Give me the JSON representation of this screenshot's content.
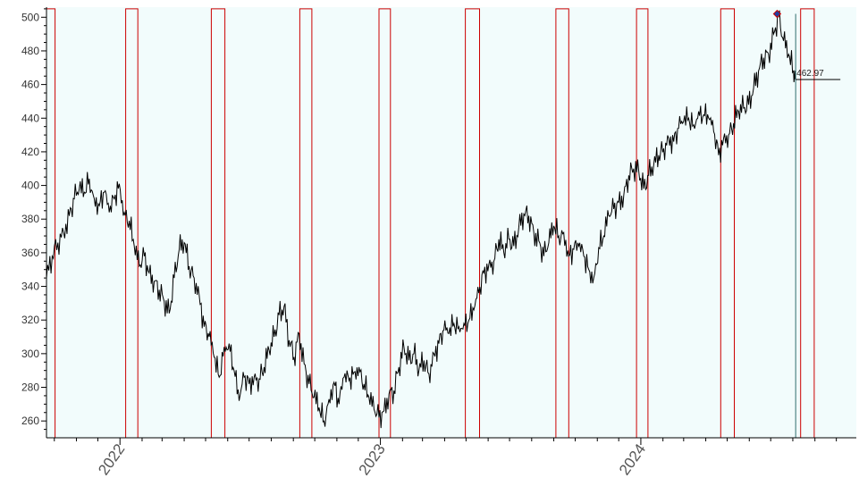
{
  "chart_data": {
    "type": "line",
    "title": "",
    "xlabel": "",
    "ylabel": "",
    "x_range": [
      "2021-09-20",
      "2024-10-29"
    ],
    "ylim": [
      250,
      506
    ],
    "y_ticks": [
      260,
      280,
      300,
      320,
      340,
      360,
      380,
      400,
      420,
      440,
      460,
      480,
      500
    ],
    "x_ticks": [
      {
        "date": "2022-01-01",
        "label": "2022"
      },
      {
        "date": "2023-01-01",
        "label": "2023"
      },
      {
        "date": "2024-01-01",
        "label": "2024"
      }
    ],
    "grid": false,
    "last_value_label": "462.97",
    "last_point": {
      "date": "2024-08-05",
      "value": 462.97
    },
    "marker_point": {
      "date": "2024-07-10",
      "value": 502
    },
    "colors": {
      "background": "#f2fcfc",
      "price_line": "#000000",
      "window_band": "#cc0000",
      "cursor_line": "#2f6f6f",
      "marker": "#1f3f9f"
    },
    "windows": [
      {
        "start": "2021-09-20",
        "end": "2021-10-02"
      },
      {
        "start": "2022-01-09",
        "end": "2022-01-26"
      },
      {
        "start": "2022-05-09",
        "end": "2022-05-28"
      },
      {
        "start": "2022-09-10",
        "end": "2022-09-27"
      },
      {
        "start": "2022-12-30",
        "end": "2023-01-15"
      },
      {
        "start": "2023-04-30",
        "end": "2023-05-20"
      },
      {
        "start": "2023-09-04",
        "end": "2023-09-22"
      },
      {
        "start": "2023-12-26",
        "end": "2024-01-11"
      },
      {
        "start": "2024-04-22",
        "end": "2024-05-11"
      },
      {
        "start": "2024-08-12",
        "end": "2024-08-31"
      }
    ],
    "series": [
      {
        "points": [
          [
            "2021-09-20",
            345
          ],
          [
            "2021-09-28",
            358
          ],
          [
            "2021-10-06",
            366
          ],
          [
            "2021-10-14",
            372
          ],
          [
            "2021-10-22",
            382
          ],
          [
            "2021-10-29",
            392
          ],
          [
            "2021-11-05",
            398
          ],
          [
            "2021-11-12",
            396
          ],
          [
            "2021-11-19",
            404
          ],
          [
            "2021-11-26",
            392
          ],
          [
            "2021-12-03",
            388
          ],
          [
            "2021-12-10",
            396
          ],
          [
            "2021-12-17",
            384
          ],
          [
            "2021-12-24",
            392
          ],
          [
            "2021-12-31",
            401
          ],
          [
            "2022-01-07",
            384
          ],
          [
            "2022-01-14",
            379
          ],
          [
            "2022-01-21",
            364
          ],
          [
            "2022-01-28",
            352
          ],
          [
            "2022-02-04",
            358
          ],
          [
            "2022-02-11",
            348
          ],
          [
            "2022-02-18",
            343
          ],
          [
            "2022-02-25",
            338
          ],
          [
            "2022-03-04",
            331
          ],
          [
            "2022-03-11",
            324
          ],
          [
            "2022-03-18",
            345
          ],
          [
            "2022-03-25",
            362
          ],
          [
            "2022-04-01",
            366
          ],
          [
            "2022-04-08",
            352
          ],
          [
            "2022-04-15",
            345
          ],
          [
            "2022-04-22",
            335
          ],
          [
            "2022-04-29",
            316
          ],
          [
            "2022-05-06",
            310
          ],
          [
            "2022-05-13",
            298
          ],
          [
            "2022-05-20",
            286
          ],
          [
            "2022-05-27",
            304
          ],
          [
            "2022-06-03",
            306
          ],
          [
            "2022-06-10",
            290
          ],
          [
            "2022-06-17",
            272
          ],
          [
            "2022-06-24",
            286
          ],
          [
            "2022-07-01",
            282
          ],
          [
            "2022-07-08",
            286
          ],
          [
            "2022-07-15",
            285
          ],
          [
            "2022-07-22",
            292
          ],
          [
            "2022-07-29",
            302
          ],
          [
            "2022-08-05",
            310
          ],
          [
            "2022-08-12",
            323
          ],
          [
            "2022-08-19",
            328
          ],
          [
            "2022-08-26",
            308
          ],
          [
            "2022-09-02",
            298
          ],
          [
            "2022-09-09",
            312
          ],
          [
            "2022-09-16",
            294
          ],
          [
            "2022-09-23",
            282
          ],
          [
            "2022-09-30",
            274
          ],
          [
            "2022-10-07",
            268
          ],
          [
            "2022-10-14",
            260
          ],
          [
            "2022-10-21",
            273
          ],
          [
            "2022-10-28",
            283
          ],
          [
            "2022-11-04",
            270
          ],
          [
            "2022-11-11",
            286
          ],
          [
            "2022-11-18",
            284
          ],
          [
            "2022-11-25",
            289
          ],
          [
            "2022-12-02",
            292
          ],
          [
            "2022-12-09",
            282
          ],
          [
            "2022-12-16",
            274
          ],
          [
            "2022-12-23",
            267
          ],
          [
            "2022-12-30",
            262
          ],
          [
            "2023-01-06",
            266
          ],
          [
            "2023-01-13",
            276
          ],
          [
            "2023-01-20",
            278
          ],
          [
            "2023-01-27",
            292
          ],
          [
            "2023-02-03",
            304
          ],
          [
            "2023-02-10",
            296
          ],
          [
            "2023-02-17",
            300
          ],
          [
            "2023-02-24",
            290
          ],
          [
            "2023-03-03",
            296
          ],
          [
            "2023-03-10",
            288
          ],
          [
            "2023-03-17",
            300
          ],
          [
            "2023-03-24",
            306
          ],
          [
            "2023-03-31",
            314
          ],
          [
            "2023-04-07",
            312
          ],
          [
            "2023-04-14",
            318
          ],
          [
            "2023-04-21",
            316
          ],
          [
            "2023-04-28",
            318
          ],
          [
            "2023-05-05",
            320
          ],
          [
            "2023-05-12",
            326
          ],
          [
            "2023-05-19",
            336
          ],
          [
            "2023-05-26",
            348
          ],
          [
            "2023-06-02",
            353
          ],
          [
            "2023-06-09",
            355
          ],
          [
            "2023-06-16",
            368
          ],
          [
            "2023-06-23",
            360
          ],
          [
            "2023-06-30",
            368
          ],
          [
            "2023-07-07",
            364
          ],
          [
            "2023-07-14",
            375
          ],
          [
            "2023-07-21",
            383
          ],
          [
            "2023-07-28",
            382
          ],
          [
            "2023-08-04",
            372
          ],
          [
            "2023-08-11",
            367
          ],
          [
            "2023-08-18",
            358
          ],
          [
            "2023-08-25",
            366
          ],
          [
            "2023-09-01",
            376
          ],
          [
            "2023-09-08",
            370
          ],
          [
            "2023-09-15",
            372
          ],
          [
            "2023-09-22",
            358
          ],
          [
            "2023-09-29",
            362
          ],
          [
            "2023-10-06",
            364
          ],
          [
            "2023-10-13",
            358
          ],
          [
            "2023-10-20",
            350
          ],
          [
            "2023-10-27",
            345
          ],
          [
            "2023-11-03",
            363
          ],
          [
            "2023-11-10",
            370
          ],
          [
            "2023-11-17",
            382
          ],
          [
            "2023-11-24",
            386
          ],
          [
            "2023-12-01",
            390
          ],
          [
            "2023-12-08",
            394
          ],
          [
            "2023-12-15",
            406
          ],
          [
            "2023-12-22",
            410
          ],
          [
            "2023-12-29",
            409
          ],
          [
            "2024-01-05",
            398
          ],
          [
            "2024-01-12",
            406
          ],
          [
            "2024-01-19",
            412
          ],
          [
            "2024-01-26",
            418
          ],
          [
            "2024-02-02",
            422
          ],
          [
            "2024-02-09",
            428
          ],
          [
            "2024-02-16",
            426
          ],
          [
            "2024-02-23",
            434
          ],
          [
            "2024-03-01",
            438
          ],
          [
            "2024-03-08",
            440
          ],
          [
            "2024-03-15",
            436
          ],
          [
            "2024-03-22",
            444
          ],
          [
            "2024-03-29",
            442
          ],
          [
            "2024-04-05",
            440
          ],
          [
            "2024-04-12",
            432
          ],
          [
            "2024-04-19",
            418
          ],
          [
            "2024-04-26",
            428
          ],
          [
            "2024-05-03",
            430
          ],
          [
            "2024-05-10",
            437
          ],
          [
            "2024-05-17",
            444
          ],
          [
            "2024-05-24",
            446
          ],
          [
            "2024-05-31",
            448
          ],
          [
            "2024-06-07",
            458
          ],
          [
            "2024-06-14",
            468
          ],
          [
            "2024-06-21",
            476
          ],
          [
            "2024-06-28",
            478
          ],
          [
            "2024-07-05",
            490
          ],
          [
            "2024-07-12",
            500
          ],
          [
            "2024-07-19",
            486
          ],
          [
            "2024-07-26",
            478
          ],
          [
            "2024-08-02",
            468
          ],
          [
            "2024-08-05",
            462.97
          ]
        ]
      }
    ]
  }
}
